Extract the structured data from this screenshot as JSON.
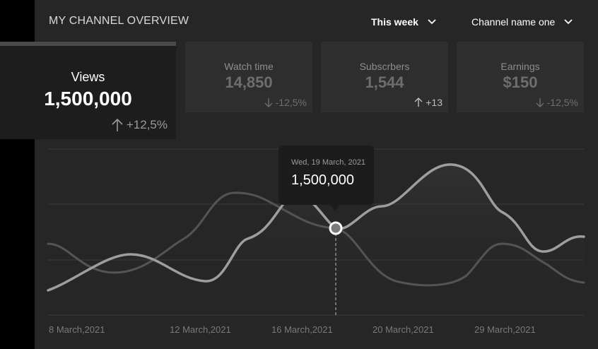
{
  "header": {
    "title": "MY CHANNEL OVERVIEW",
    "period_label": "This week",
    "channel_label": "Channel name one"
  },
  "cards": [
    {
      "label": "Views",
      "value": "1,500,000",
      "delta": "+12,5%",
      "direction": "up",
      "active": true
    },
    {
      "label": "Watch time",
      "value": "14,850",
      "delta": "-12,5%",
      "direction": "down",
      "active": false
    },
    {
      "label": "Subscrbers",
      "value": "1,544",
      "delta": "+13",
      "direction": "up",
      "active": false
    },
    {
      "label": "Earnings",
      "value": "$150",
      "delta": "-12,5%",
      "direction": "down",
      "active": false
    }
  ],
  "tooltip": {
    "date": "Wed, 19 March, 2021",
    "value": "1,500,000"
  },
  "x_axis": [
    "8 March,2021",
    "12 March,2021",
    "16 March,2021",
    "20 March,2021",
    "29 March,2021"
  ],
  "colors": {
    "background": "#262626",
    "primary_line": "#9e9e9e",
    "secondary_line": "#545454",
    "grid": "#3c3c3c"
  }
}
